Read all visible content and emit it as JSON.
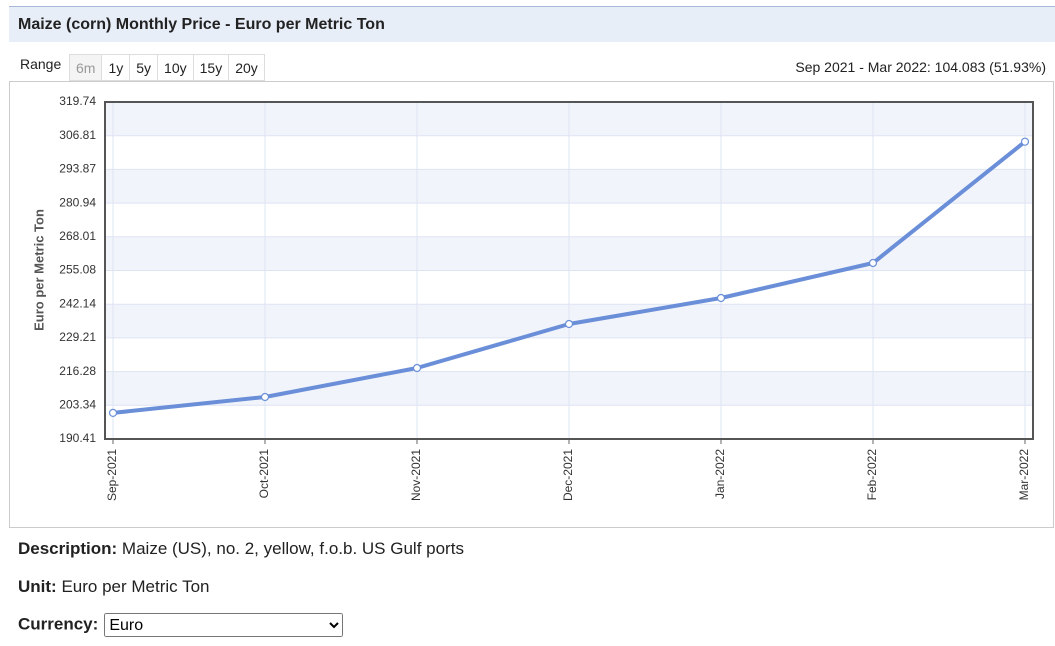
{
  "header": {
    "title": "Maize (corn) Monthly Price - Euro per Metric Ton"
  },
  "range": {
    "label": "Range",
    "buttons": [
      "6m",
      "1y",
      "5y",
      "10y",
      "15y",
      "20y"
    ],
    "summary": "Sep 2021 - Mar 2022: 104.083 (51.93%)"
  },
  "chart_data": {
    "type": "line",
    "y_label": "Euro per Metric Ton",
    "categories": [
      "Sep-2021",
      "Oct-2021",
      "Nov-2021",
      "Dec-2021",
      "Jan-2022",
      "Feb-2022",
      "Mar-2022"
    ],
    "series": [
      {
        "name": "Price",
        "color": "#6a8fd8",
        "values": [
          200.43,
          206.53,
          217.66,
          234.54,
          244.52,
          257.95,
          304.51
        ]
      }
    ],
    "ylim": [
      190.41,
      319.74
    ],
    "yticks": [
      190.41,
      203.34,
      216.28,
      229.21,
      242.14,
      255.08,
      268.01,
      280.94,
      293.87,
      306.81,
      319.74
    ],
    "grid": true
  },
  "description": {
    "label": "Description:",
    "text": "Maize (US), no. 2, yellow, f.o.b. US Gulf ports"
  },
  "unit": {
    "label": "Unit:",
    "text": "Euro per Metric Ton"
  },
  "currency": {
    "label": "Currency:",
    "selected": "Euro"
  }
}
